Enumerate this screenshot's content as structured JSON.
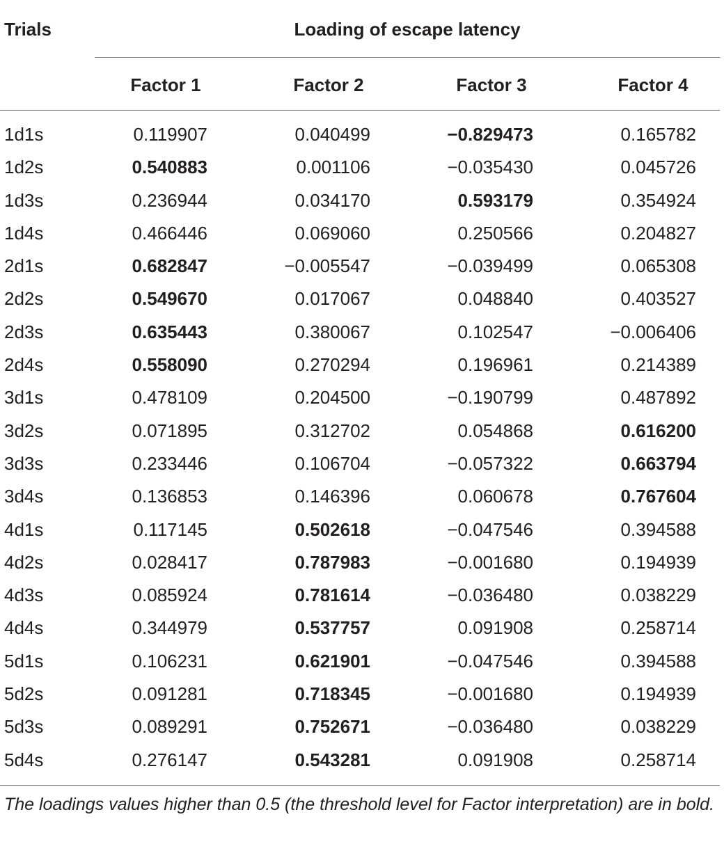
{
  "header": {
    "trials_label": "Trials",
    "group_label": "Loading of escape latency",
    "columns": [
      "Factor 1",
      "Factor 2",
      "Factor 3",
      "Factor 4"
    ]
  },
  "rows": [
    {
      "trial": "1d1s",
      "values": [
        "0.119907",
        "0.040499",
        "−0.829473",
        "0.165782"
      ],
      "bold": [
        false,
        false,
        true,
        false
      ]
    },
    {
      "trial": "1d2s",
      "values": [
        "0.540883",
        "0.001106",
        "−0.035430",
        "0.045726"
      ],
      "bold": [
        true,
        false,
        false,
        false
      ]
    },
    {
      "trial": "1d3s",
      "values": [
        "0.236944",
        "0.034170",
        "0.593179",
        "0.354924"
      ],
      "bold": [
        false,
        false,
        true,
        false
      ]
    },
    {
      "trial": "1d4s",
      "values": [
        "0.466446",
        "0.069060",
        "0.250566",
        "0.204827"
      ],
      "bold": [
        false,
        false,
        false,
        false
      ]
    },
    {
      "trial": "2d1s",
      "values": [
        "0.682847",
        "−0.005547",
        "−0.039499",
        "0.065308"
      ],
      "bold": [
        true,
        false,
        false,
        false
      ]
    },
    {
      "trial": "2d2s",
      "values": [
        "0.549670",
        "0.017067",
        "0.048840",
        "0.403527"
      ],
      "bold": [
        true,
        false,
        false,
        false
      ]
    },
    {
      "trial": "2d3s",
      "values": [
        "0.635443",
        "0.380067",
        "0.102547",
        "−0.006406"
      ],
      "bold": [
        true,
        false,
        false,
        false
      ]
    },
    {
      "trial": "2d4s",
      "values": [
        "0.558090",
        "0.270294",
        "0.196961",
        "0.214389"
      ],
      "bold": [
        true,
        false,
        false,
        false
      ]
    },
    {
      "trial": "3d1s",
      "values": [
        "0.478109",
        "0.204500",
        "−0.190799",
        "0.487892"
      ],
      "bold": [
        false,
        false,
        false,
        false
      ]
    },
    {
      "trial": "3d2s",
      "values": [
        "0.071895",
        "0.312702",
        "0.054868",
        "0.616200"
      ],
      "bold": [
        false,
        false,
        false,
        true
      ]
    },
    {
      "trial": "3d3s",
      "values": [
        "0.233446",
        "0.106704",
        "−0.057322",
        "0.663794"
      ],
      "bold": [
        false,
        false,
        false,
        true
      ]
    },
    {
      "trial": "3d4s",
      "values": [
        "0.136853",
        "0.146396",
        "0.060678",
        "0.767604"
      ],
      "bold": [
        false,
        false,
        false,
        true
      ]
    },
    {
      "trial": "4d1s",
      "values": [
        "0.117145",
        "0.502618",
        "−0.047546",
        "0.394588"
      ],
      "bold": [
        false,
        true,
        false,
        false
      ]
    },
    {
      "trial": "4d2s",
      "values": [
        "0.028417",
        "0.787983",
        "−0.001680",
        "0.194939"
      ],
      "bold": [
        false,
        true,
        false,
        false
      ]
    },
    {
      "trial": "4d3s",
      "values": [
        "0.085924",
        "0.781614",
        "−0.036480",
        "0.038229"
      ],
      "bold": [
        false,
        true,
        false,
        false
      ]
    },
    {
      "trial": "4d4s",
      "values": [
        "0.344979",
        "0.537757",
        "0.091908",
        "0.258714"
      ],
      "bold": [
        false,
        true,
        false,
        false
      ]
    },
    {
      "trial": "5d1s",
      "values": [
        "0.106231",
        "0.621901",
        "−0.047546",
        "0.394588"
      ],
      "bold": [
        false,
        true,
        false,
        false
      ]
    },
    {
      "trial": "5d2s",
      "values": [
        "0.091281",
        "0.718345",
        "−0.001680",
        "0.194939"
      ],
      "bold": [
        false,
        true,
        false,
        false
      ]
    },
    {
      "trial": "5d3s",
      "values": [
        "0.089291",
        "0.752671",
        "−0.036480",
        "0.038229"
      ],
      "bold": [
        false,
        true,
        false,
        false
      ]
    },
    {
      "trial": "5d4s",
      "values": [
        "0.276147",
        "0.543281",
        "0.091908",
        "0.258714"
      ],
      "bold": [
        false,
        true,
        false,
        false
      ]
    }
  ],
  "footnote": "The loadings values higher than 0.5 (the threshold level for Factor interpretation) are in bold."
}
